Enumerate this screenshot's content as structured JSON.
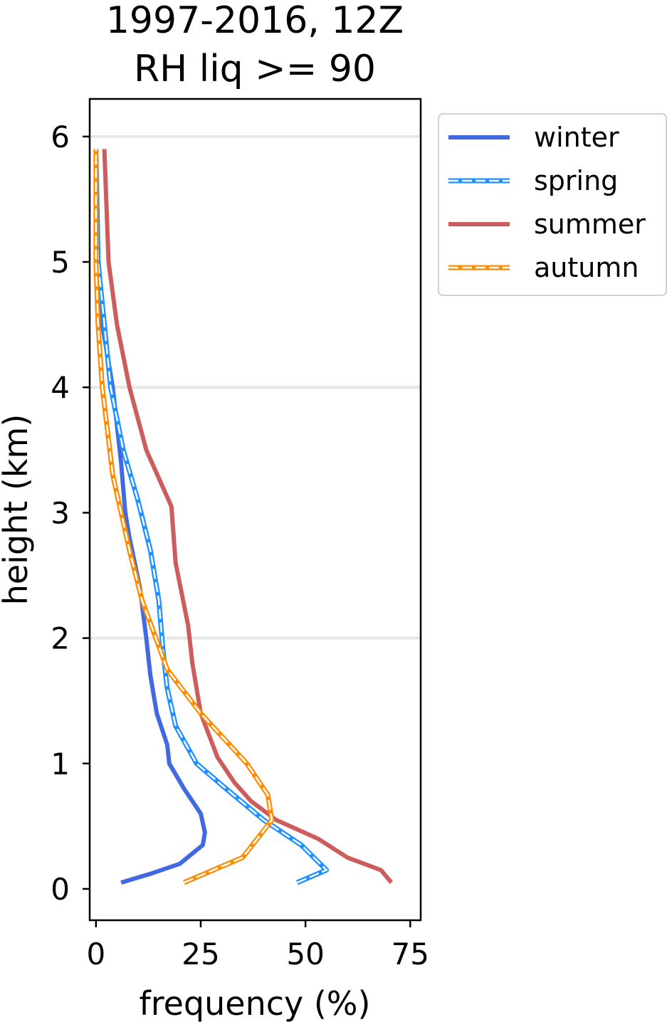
{
  "chart_data": {
    "type": "line",
    "title": "1997-2016, 12Z",
    "subtitle": "RH liq >= 90",
    "xlabel": "frequency (%)",
    "ylabel": "height (km)",
    "xlim": [
      -1.5,
      77.5
    ],
    "ylim": [
      -0.25,
      6.3
    ],
    "xticks": [
      0,
      25,
      50,
      75
    ],
    "yticks": [
      0,
      1,
      2,
      3,
      4,
      5,
      6
    ],
    "grid": {
      "axis": "y",
      "lines_at": [
        2,
        4,
        6
      ]
    },
    "legend_position": "outside-top-right",
    "series": [
      {
        "name": "winter",
        "color": "#4169e1",
        "style": "solid",
        "points": [
          [
            6,
            0.05
          ],
          [
            13,
            0.12
          ],
          [
            20,
            0.2
          ],
          [
            25.5,
            0.35
          ],
          [
            26,
            0.45
          ],
          [
            25,
            0.6
          ],
          [
            21,
            0.8
          ],
          [
            17.5,
            1.0
          ],
          [
            17,
            1.15
          ],
          [
            14.5,
            1.4
          ],
          [
            13,
            1.7
          ],
          [
            12,
            2.0
          ],
          [
            10.5,
            2.4
          ],
          [
            8,
            2.8
          ],
          [
            7,
            3.0
          ],
          [
            6,
            3.4
          ],
          [
            4,
            4.0
          ],
          [
            1.5,
            4.5
          ],
          [
            0.5,
            5.0
          ],
          [
            0,
            5.9
          ]
        ]
      },
      {
        "name": "spring",
        "color": "#1e90ff",
        "style": "dashed",
        "points": [
          [
            48,
            0.05
          ],
          [
            55,
            0.15
          ],
          [
            49,
            0.35
          ],
          [
            40,
            0.55
          ],
          [
            31,
            0.8
          ],
          [
            24,
            1.0
          ],
          [
            19,
            1.3
          ],
          [
            17,
            1.6
          ],
          [
            16,
            1.9
          ],
          [
            15,
            2.3
          ],
          [
            13,
            2.7
          ],
          [
            10,
            3.1
          ],
          [
            6.5,
            3.5
          ],
          [
            3.5,
            4.0
          ],
          [
            2,
            4.5
          ],
          [
            0.5,
            5.0
          ],
          [
            0,
            5.9
          ]
        ]
      },
      {
        "name": "summer",
        "color": "#cd5c5c",
        "style": "solid",
        "points": [
          [
            70.5,
            0.05
          ],
          [
            68,
            0.15
          ],
          [
            60,
            0.25
          ],
          [
            53,
            0.4
          ],
          [
            43,
            0.55
          ],
          [
            37,
            0.7
          ],
          [
            33,
            0.85
          ],
          [
            29,
            1.05
          ],
          [
            25,
            1.4
          ],
          [
            23,
            1.8
          ],
          [
            22,
            2.1
          ],
          [
            19,
            2.6
          ],
          [
            18,
            3.05
          ],
          [
            12,
            3.5
          ],
          [
            8,
            4.0
          ],
          [
            5,
            4.5
          ],
          [
            3,
            5.0
          ],
          [
            2,
            5.9
          ]
        ]
      },
      {
        "name": "autumn",
        "color": "#ff8c00",
        "style": "dashed",
        "points": [
          [
            21,
            0.05
          ],
          [
            35,
            0.25
          ],
          [
            42,
            0.55
          ],
          [
            41,
            0.75
          ],
          [
            36,
            1.0
          ],
          [
            25,
            1.4
          ],
          [
            17,
            1.75
          ],
          [
            11,
            2.3
          ],
          [
            8,
            2.7
          ],
          [
            4,
            3.3
          ],
          [
            1.5,
            4.0
          ],
          [
            0.5,
            4.5
          ],
          [
            0,
            5.0
          ],
          [
            0,
            5.9
          ]
        ]
      }
    ]
  }
}
